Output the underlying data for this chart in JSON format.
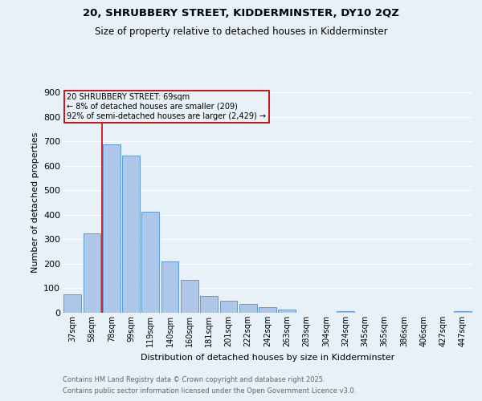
{
  "title1": "20, SHRUBBERY STREET, KIDDERMINSTER, DY10 2QZ",
  "title2": "Size of property relative to detached houses in Kidderminster",
  "xlabel": "Distribution of detached houses by size in Kidderminster",
  "ylabel": "Number of detached properties",
  "categories": [
    "37sqm",
    "58sqm",
    "78sqm",
    "99sqm",
    "119sqm",
    "140sqm",
    "160sqm",
    "181sqm",
    "201sqm",
    "222sqm",
    "242sqm",
    "263sqm",
    "283sqm",
    "304sqm",
    "324sqm",
    "345sqm",
    "365sqm",
    "386sqm",
    "406sqm",
    "427sqm",
    "447sqm"
  ],
  "values": [
    75,
    325,
    688,
    640,
    412,
    208,
    135,
    70,
    48,
    35,
    22,
    12,
    0,
    0,
    5,
    0,
    0,
    0,
    0,
    0,
    7
  ],
  "bar_color": "#aec6e8",
  "bar_edge_color": "#5b9bd5",
  "vline_x": 1.5,
  "vline_color": "#cc0000",
  "annotation_lines": [
    "20 SHRUBBERY STREET: 69sqm",
    "← 8% of detached houses are smaller (209)",
    "92% of semi-detached houses are larger (2,429) →"
  ],
  "annotation_box_color": "#cc0000",
  "bg_color": "#e8f0f8",
  "grid_color": "#ffffff",
  "footer1": "Contains HM Land Registry data © Crown copyright and database right 2025.",
  "footer2": "Contains public sector information licensed under the Open Government Licence v3.0.",
  "ylim": [
    0,
    900
  ],
  "yticks": [
    0,
    100,
    200,
    300,
    400,
    500,
    600,
    700,
    800,
    900
  ]
}
